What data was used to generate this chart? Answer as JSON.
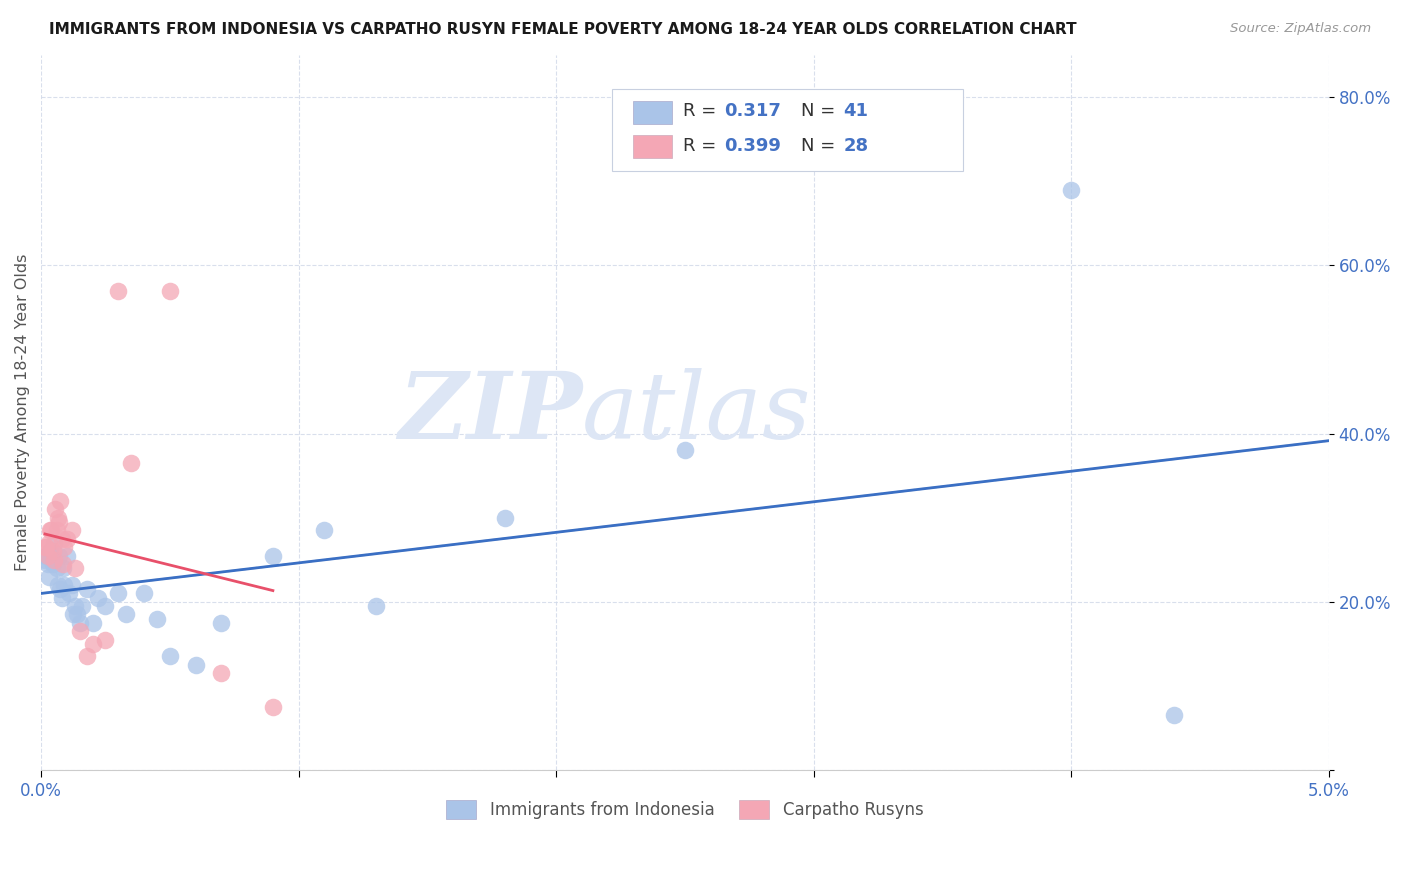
{
  "title": "IMMIGRANTS FROM INDONESIA VS CARPATHO RUSYN FEMALE POVERTY AMONG 18-24 YEAR OLDS CORRELATION CHART",
  "source": "Source: ZipAtlas.com",
  "ylabel": "Female Poverty Among 18-24 Year Olds",
  "xlim": [
    0.0,
    0.05
  ],
  "ylim": [
    0.0,
    0.85
  ],
  "xticks": [
    0.0,
    0.01,
    0.02,
    0.03,
    0.04,
    0.05
  ],
  "xticklabels": [
    "0.0%",
    "",
    "",
    "",
    "",
    "5.0%"
  ],
  "yticks": [
    0.0,
    0.2,
    0.4,
    0.6,
    0.8
  ],
  "yticklabels": [
    "",
    "20.0%",
    "40.0%",
    "60.0%",
    "80.0%"
  ],
  "color_blue": "#aac4e8",
  "color_pink": "#f4a7b5",
  "color_blue_line": "#3a6fc4",
  "color_pink_line": "#e8506a",
  "color_axis_text": "#4472c4",
  "color_gray_dash": "#c8c8c8",
  "watermark_zip": "ZIP",
  "watermark_atlas": "atlas",
  "indonesia_x": [
    0.00015,
    0.0002,
    0.00025,
    0.0003,
    0.00035,
    0.0004,
    0.00045,
    0.0005,
    0.0006,
    0.00065,
    0.0007,
    0.00075,
    0.0008,
    0.00085,
    0.0009,
    0.001,
    0.0011,
    0.0012,
    0.00125,
    0.0013,
    0.0014,
    0.0015,
    0.0016,
    0.0018,
    0.002,
    0.0022,
    0.0025,
    0.003,
    0.0033,
    0.004,
    0.0045,
    0.005,
    0.006,
    0.007,
    0.009,
    0.011,
    0.013,
    0.018,
    0.025,
    0.04,
    0.044
  ],
  "indonesia_y": [
    0.25,
    0.255,
    0.245,
    0.23,
    0.26,
    0.255,
    0.245,
    0.27,
    0.24,
    0.22,
    0.255,
    0.215,
    0.205,
    0.24,
    0.22,
    0.255,
    0.21,
    0.22,
    0.185,
    0.195,
    0.185,
    0.175,
    0.195,
    0.215,
    0.175,
    0.205,
    0.195,
    0.21,
    0.185,
    0.21,
    0.18,
    0.135,
    0.125,
    0.175,
    0.255,
    0.285,
    0.195,
    0.3,
    0.38,
    0.69,
    0.065
  ],
  "rusyn_x": [
    0.00015,
    0.0002,
    0.00025,
    0.0003,
    0.00035,
    0.0004,
    0.00045,
    0.0005,
    0.00055,
    0.0006,
    0.00065,
    0.0007,
    0.00075,
    0.0008,
    0.00085,
    0.0009,
    0.001,
    0.0012,
    0.0013,
    0.0015,
    0.0018,
    0.002,
    0.0025,
    0.003,
    0.0035,
    0.005,
    0.007,
    0.009
  ],
  "rusyn_y": [
    0.265,
    0.265,
    0.255,
    0.27,
    0.285,
    0.285,
    0.26,
    0.25,
    0.31,
    0.285,
    0.3,
    0.295,
    0.32,
    0.275,
    0.245,
    0.265,
    0.275,
    0.285,
    0.24,
    0.165,
    0.135,
    0.15,
    0.155,
    0.57,
    0.365,
    0.57,
    0.115,
    0.075
  ]
}
